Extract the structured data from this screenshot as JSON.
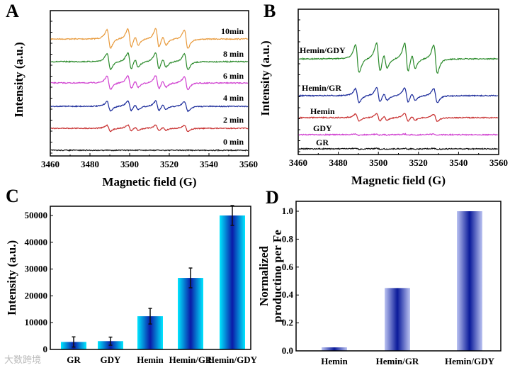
{
  "chart_data": [
    {
      "panel": "A",
      "type": "line",
      "xlabel": "Magnetic  field (G)",
      "ylabel": "Intensity (a.u.)",
      "xlim": [
        3460,
        3560
      ],
      "xticks": [
        "3460",
        "3480",
        "3500",
        "3520",
        "3540",
        "3560"
      ],
      "series": [
        {
          "name": "10min",
          "color": "#e89a3c",
          "relative_amplitude": 1.0
        },
        {
          "name": "8 min",
          "color": "#2a8a2a",
          "relative_amplitude": 0.88
        },
        {
          "name": "6 min",
          "color": "#d040d0",
          "relative_amplitude": 0.7
        },
        {
          "name": "4 min",
          "color": "#1a2a9a",
          "relative_amplitude": 0.52
        },
        {
          "name": "2 min",
          "color": "#c83030",
          "relative_amplitude": 0.32
        },
        {
          "name": "0 min",
          "color": "#111111",
          "relative_amplitude": 0.0
        }
      ],
      "line_positions_G": [
        3489.5,
        3500,
        3503.5,
        3514,
        3517.5,
        3528.5
      ]
    },
    {
      "panel": "B",
      "type": "line",
      "xlabel": "Magnetic  field (G)",
      "ylabel": "Intensity (a.u.)",
      "xlim": [
        3460,
        3560
      ],
      "xticks": [
        "3460",
        "3480",
        "3500",
        "3520",
        "3540",
        "3560"
      ],
      "series": [
        {
          "name": "Hemin/GDY",
          "color": "#2a8a2a",
          "relative_amplitude": 1.0
        },
        {
          "name": "Hemin/GR",
          "color": "#1a2a9a",
          "relative_amplitude": 0.5
        },
        {
          "name": "Hemin",
          "color": "#c83030",
          "relative_amplitude": 0.26
        },
        {
          "name": "GDY",
          "color": "#d040d0",
          "relative_amplitude": 0.04
        },
        {
          "name": "GR",
          "color": "#111111",
          "relative_amplitude": 0.03
        }
      ]
    },
    {
      "panel": "C",
      "type": "bar",
      "ylabel": "Intensity (a.u.)",
      "ylim": [
        0,
        55000
      ],
      "yticks": [
        "0",
        "10000",
        "20000",
        "30000",
        "40000",
        "50000"
      ],
      "categories": [
        "GR",
        "GDY",
        "Hemin",
        "Hemin/GR",
        "Hemin/GDY"
      ],
      "values": [
        2800,
        3100,
        12400,
        26700,
        50000
      ],
      "errors": [
        1900,
        1500,
        2900,
        3700,
        3700
      ]
    },
    {
      "panel": "D",
      "type": "bar",
      "ylabel": [
        "Normalized",
        "productino per Fe"
      ],
      "ylim": [
        0,
        1.08
      ],
      "yticks": [
        "0.0",
        "0.2",
        "0.4",
        "0.6",
        "0.8",
        "1.0"
      ],
      "categories": [
        "Hemin",
        "Hemin/GR",
        "Hemin/GDY"
      ],
      "values": [
        0.025,
        0.45,
        1.0
      ]
    }
  ],
  "watermark": "大数跨境"
}
